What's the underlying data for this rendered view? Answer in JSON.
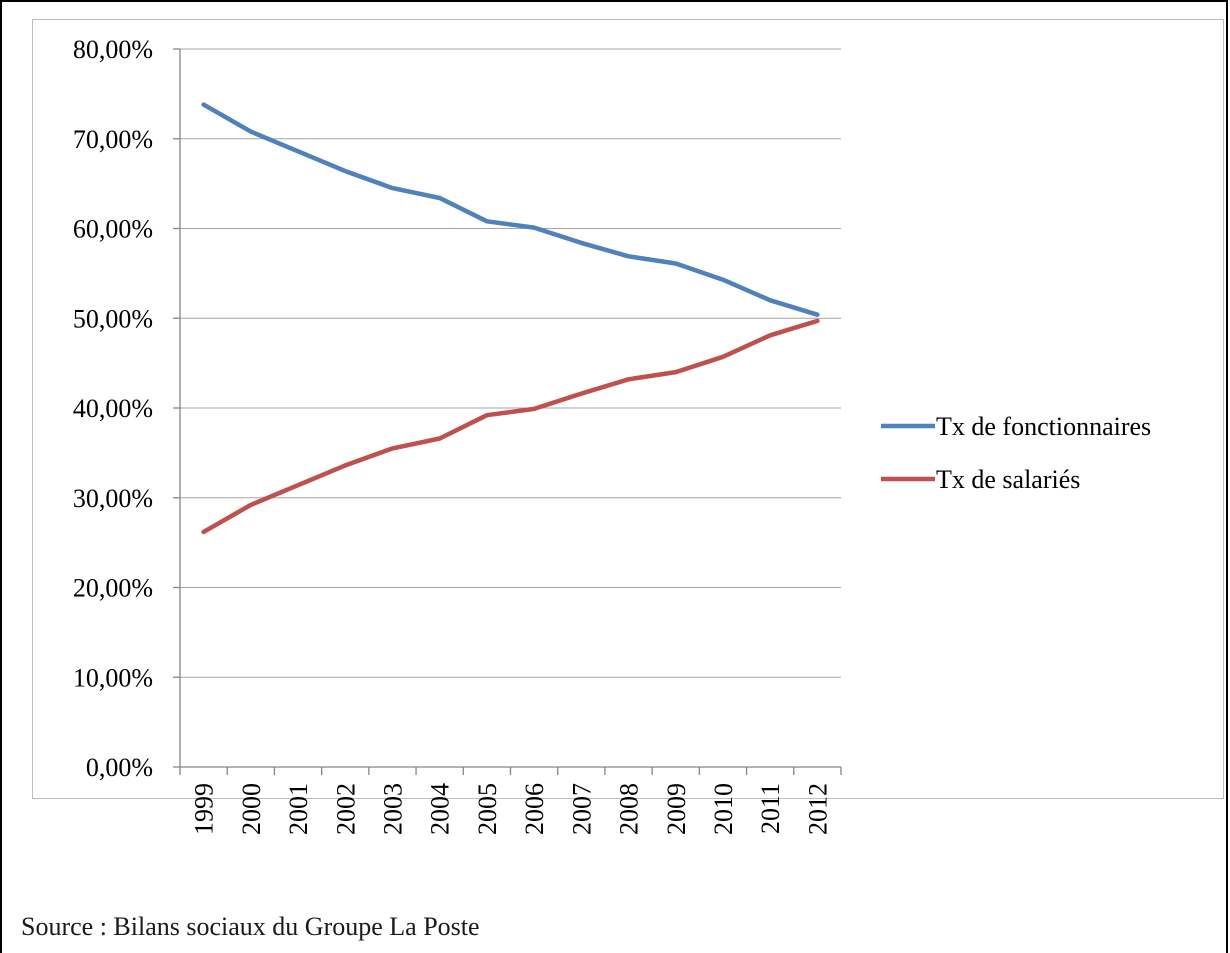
{
  "source_note": "Source : Bilans sociaux du Groupe La Poste",
  "colors": {
    "series_fonctionnaires": "#4f81bd",
    "series_salaries": "#c0504d",
    "gridline": "#a6a6a6",
    "axis": "#868686"
  },
  "chart_data": {
    "type": "line",
    "title": "",
    "xlabel": "",
    "ylabel": "",
    "categories": [
      "1999",
      "2000",
      "2001",
      "2002",
      "2003",
      "2004",
      "2005",
      "2006",
      "2007",
      "2008",
      "2009",
      "2010",
      "2011",
      "2012"
    ],
    "ylim": [
      0,
      0.8
    ],
    "y_ticks": [
      0,
      0.1,
      0.2,
      0.3,
      0.4,
      0.5,
      0.6,
      0.7,
      0.8
    ],
    "y_tick_labels": [
      "0,00%",
      "10,00%",
      "20,00%",
      "30,00%",
      "40,00%",
      "50,00%",
      "60,00%",
      "70,00%",
      "80,00%"
    ],
    "grid": true,
    "legend_position": "right",
    "series": [
      {
        "name": "Tx de fonctionnaires",
        "values": [
          0.738,
          0.708,
          0.686,
          0.664,
          0.645,
          0.634,
          0.608,
          0.601,
          0.584,
          0.569,
          0.561,
          0.543,
          0.52,
          0.504
        ]
      },
      {
        "name": "Tx de salariés",
        "values": [
          0.262,
          0.292,
          0.314,
          0.336,
          0.355,
          0.366,
          0.392,
          0.399,
          0.416,
          0.432,
          0.44,
          0.457,
          0.481,
          0.497
        ]
      }
    ]
  }
}
